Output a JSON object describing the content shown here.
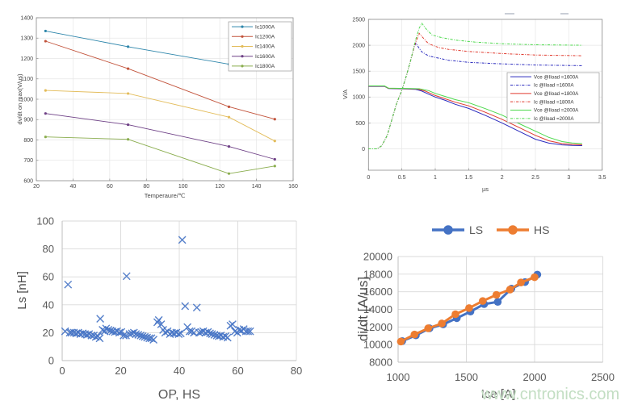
{
  "watermark": "www.cntronics.com",
  "chart_data": [
    {
      "id": "dvdt-vs-temperature",
      "type": "line",
      "style": "matlab",
      "xlabel": "Temperaure/℃",
      "ylabel": "dv/dt on max(V/us)",
      "xlim": [
        20,
        160
      ],
      "ylim": [
        600,
        1400
      ],
      "xticks": [
        20,
        40,
        60,
        80,
        100,
        120,
        140,
        160
      ],
      "yticks": [
        600,
        700,
        800,
        900,
        1000,
        1100,
        1200,
        1300,
        1400
      ],
      "grid": true,
      "legend_position": "top-right-inside",
      "x": [
        25,
        70,
        125,
        150
      ],
      "series": [
        {
          "name": "Ic1000A",
          "color": "#2E86AB",
          "marker": "dot",
          "values": [
            1335,
            1258,
            1172,
            1153
          ]
        },
        {
          "name": "Ic1200A",
          "color": "#C2533B",
          "marker": "dot",
          "values": [
            1285,
            1150,
            963,
            902
          ]
        },
        {
          "name": "Ic1400A",
          "color": "#E3BC5A",
          "marker": "dot",
          "values": [
            1043,
            1028,
            912,
            795
          ]
        },
        {
          "name": "Ic1600A",
          "color": "#6E4086",
          "marker": "dot",
          "values": [
            930,
            875,
            768,
            705
          ]
        },
        {
          "name": "Ic1800A",
          "color": "#8AAD4E",
          "marker": "dot",
          "values": [
            815,
            803,
            635,
            672
          ]
        }
      ]
    },
    {
      "id": "turn-on-waveforms",
      "type": "line",
      "style": "matlab",
      "xlabel": "µs",
      "ylabel": "V/A",
      "xlim": [
        0,
        3.5
      ],
      "ylim": [
        -200,
        2500
      ],
      "xticks": [
        0,
        0.5,
        1,
        1.5,
        2,
        2.5,
        3,
        3.5
      ],
      "yticks": [
        0,
        500,
        1000,
        1500,
        2000,
        2500
      ],
      "grid": true,
      "legend_position": "right-inside",
      "series": [
        {
          "name": "Vce @Iload =1600A",
          "color": "#2B2BBE",
          "dash": false,
          "points": [
            [
              0,
              1205
            ],
            [
              0.24,
              1205
            ],
            [
              0.3,
              1163
            ],
            [
              0.55,
              1156
            ],
            [
              0.7,
              1150
            ],
            [
              0.8,
              1115
            ],
            [
              0.9,
              1055
            ],
            [
              1.0,
              1000
            ],
            [
              1.15,
              935
            ],
            [
              1.3,
              860
            ],
            [
              1.5,
              780
            ],
            [
              1.75,
              645
            ],
            [
              2.0,
              500
            ],
            [
              2.25,
              340
            ],
            [
              2.5,
              185
            ],
            [
              2.7,
              110
            ],
            [
              2.9,
              75
            ],
            [
              3.05,
              65
            ],
            [
              3.2,
              62
            ]
          ]
        },
        {
          "name": "Ic @Iload =1600A",
          "color": "#2B2BBE",
          "dash": true,
          "points": [
            [
              0,
              0
            ],
            [
              0.13,
              0
            ],
            [
              0.2,
              60
            ],
            [
              0.28,
              260
            ],
            [
              0.35,
              560
            ],
            [
              0.42,
              870
            ],
            [
              0.5,
              1130
            ],
            [
              0.57,
              1420
            ],
            [
              0.63,
              1700
            ],
            [
              0.68,
              1950
            ],
            [
              0.71,
              2040
            ],
            [
              0.75,
              1960
            ],
            [
              0.8,
              1870
            ],
            [
              0.9,
              1795
            ],
            [
              1.0,
              1765
            ],
            [
              1.2,
              1710
            ],
            [
              1.5,
              1670
            ],
            [
              2.0,
              1640
            ],
            [
              2.5,
              1618
            ],
            [
              3.2,
              1605
            ]
          ]
        },
        {
          "name": "Vce @Iload =1800A",
          "color": "#E03A2E",
          "dash": false,
          "points": [
            [
              0,
              1210
            ],
            [
              0.24,
              1210
            ],
            [
              0.3,
              1168
            ],
            [
              0.55,
              1161
            ],
            [
              0.73,
              1155
            ],
            [
              0.85,
              1115
            ],
            [
              1.0,
              1030
            ],
            [
              1.15,
              965
            ],
            [
              1.3,
              900
            ],
            [
              1.5,
              830
            ],
            [
              1.75,
              705
            ],
            [
              2.0,
              570
            ],
            [
              2.25,
              415
            ],
            [
              2.5,
              260
            ],
            [
              2.7,
              155
            ],
            [
              2.9,
              100
            ],
            [
              3.05,
              85
            ],
            [
              3.2,
              78
            ]
          ]
        },
        {
          "name": "Ic @Iload =1800A",
          "color": "#E03A2E",
          "dash": true,
          "points": [
            [
              0,
              0
            ],
            [
              0.13,
              0
            ],
            [
              0.2,
              60
            ],
            [
              0.28,
              260
            ],
            [
              0.35,
              560
            ],
            [
              0.42,
              870
            ],
            [
              0.5,
              1130
            ],
            [
              0.57,
              1420
            ],
            [
              0.63,
              1700
            ],
            [
              0.69,
              2000
            ],
            [
              0.76,
              2230
            ],
            [
              0.82,
              2140
            ],
            [
              0.9,
              2030
            ],
            [
              1.05,
              1957
            ],
            [
              1.2,
              1920
            ],
            [
              1.5,
              1880
            ],
            [
              2.0,
              1840
            ],
            [
              2.5,
              1812
            ],
            [
              3.2,
              1798
            ]
          ]
        },
        {
          "name": "Vce @Iload =2000A",
          "color": "#4CD94C",
          "dash": false,
          "points": [
            [
              0,
              1215
            ],
            [
              0.24,
              1215
            ],
            [
              0.3,
              1173
            ],
            [
              0.55,
              1166
            ],
            [
              0.76,
              1160
            ],
            [
              0.9,
              1125
            ],
            [
              1.0,
              1070
            ],
            [
              1.15,
              1010
            ],
            [
              1.3,
              950
            ],
            [
              1.5,
              890
            ],
            [
              1.75,
              775
            ],
            [
              2.0,
              650
            ],
            [
              2.25,
              490
            ],
            [
              2.5,
              340
            ],
            [
              2.7,
              220
            ],
            [
              2.9,
              140
            ],
            [
              3.05,
              112
            ],
            [
              3.2,
              100
            ]
          ]
        },
        {
          "name": "Ic @Iload =2000A",
          "color": "#4CD94C",
          "dash": true,
          "points": [
            [
              0,
              0
            ],
            [
              0.13,
              0
            ],
            [
              0.2,
              60
            ],
            [
              0.28,
              260
            ],
            [
              0.35,
              560
            ],
            [
              0.42,
              870
            ],
            [
              0.5,
              1130
            ],
            [
              0.57,
              1420
            ],
            [
              0.63,
              1700
            ],
            [
              0.7,
              2080
            ],
            [
              0.76,
              2330
            ],
            [
              0.8,
              2424
            ],
            [
              0.86,
              2320
            ],
            [
              0.95,
              2200
            ],
            [
              1.09,
              2150
            ],
            [
              1.3,
              2100
            ],
            [
              1.6,
              2060
            ],
            [
              2.0,
              2030
            ],
            [
              2.5,
              2010
            ],
            [
              3.2,
              2000
            ]
          ]
        }
      ]
    },
    {
      "id": "ls-stray-inductance",
      "type": "scatter",
      "style": "excel",
      "xlabel": "OP, HS",
      "ylabel": "Ls [nH]",
      "xlim": [
        0,
        80
      ],
      "ylim": [
        0,
        100
      ],
      "xticks": [
        0,
        20,
        40,
        60,
        80
      ],
      "yticks": [
        0,
        20,
        40,
        60,
        80,
        100
      ],
      "grid": true,
      "marker": "x",
      "color": "#4472C4",
      "points": [
        [
          1,
          21
        ],
        [
          2,
          54.5
        ],
        [
          2.6,
          20
        ],
        [
          3.2,
          20
        ],
        [
          4,
          20
        ],
        [
          4.8,
          19.5
        ],
        [
          5.5,
          20
        ],
        [
          6.2,
          19
        ],
        [
          7,
          19.5
        ],
        [
          7.8,
          19
        ],
        [
          8.5,
          18.5
        ],
        [
          9.2,
          19
        ],
        [
          10,
          18
        ],
        [
          10.8,
          18
        ],
        [
          11.5,
          17
        ],
        [
          12.2,
          17.5
        ],
        [
          12.8,
          16
        ],
        [
          13,
          30
        ],
        [
          13.8,
          22
        ],
        [
          14.5,
          21
        ],
        [
          15,
          23
        ],
        [
          15.8,
          22
        ],
        [
          16.5,
          21.5
        ],
        [
          17.2,
          21
        ],
        [
          18,
          20.5
        ],
        [
          18.7,
          21
        ],
        [
          19.5,
          20
        ],
        [
          20.2,
          20.5
        ],
        [
          21,
          18
        ],
        [
          21.8,
          18
        ],
        [
          22,
          60.5
        ],
        [
          23,
          19
        ],
        [
          23.8,
          19.5
        ],
        [
          24.5,
          20
        ],
        [
          25.2,
          19
        ],
        [
          26,
          18.5
        ],
        [
          26.8,
          18
        ],
        [
          27.5,
          17.5
        ],
        [
          28.2,
          17
        ],
        [
          29,
          16.5
        ],
        [
          29.8,
          16
        ],
        [
          30.5,
          16
        ],
        [
          31.2,
          15
        ],
        [
          32.5,
          27.5
        ],
        [
          33,
          29
        ],
        [
          33.8,
          26
        ],
        [
          34.5,
          22
        ],
        [
          35.2,
          20
        ],
        [
          36,
          21
        ],
        [
          36.8,
          19
        ],
        [
          37.5,
          20
        ],
        [
          38.2,
          19.5
        ],
        [
          39,
          20
        ],
        [
          39.8,
          19
        ],
        [
          40.5,
          19.5
        ],
        [
          41,
          86.5
        ],
        [
          42,
          39
        ],
        [
          42.8,
          24
        ],
        [
          43.5,
          21
        ],
        [
          44.2,
          21
        ],
        [
          45,
          20
        ],
        [
          46,
          38
        ],
        [
          46.8,
          20
        ],
        [
          47.5,
          20.5
        ],
        [
          48.2,
          21
        ],
        [
          49,
          20
        ],
        [
          49.8,
          20.5
        ],
        [
          50.5,
          19.5
        ],
        [
          51.2,
          19
        ],
        [
          52,
          18.5
        ],
        [
          52.8,
          18
        ],
        [
          53.5,
          17.5
        ],
        [
          54.2,
          18
        ],
        [
          55,
          17
        ],
        [
          55.8,
          17.5
        ],
        [
          56.5,
          16.5
        ],
        [
          57.5,
          25
        ],
        [
          58.2,
          26
        ],
        [
          59,
          21
        ],
        [
          59.8,
          20
        ],
        [
          60.5,
          22
        ],
        [
          61.2,
          21.5
        ],
        [
          62,
          22.5
        ],
        [
          62.8,
          21
        ],
        [
          63.5,
          21
        ],
        [
          64.2,
          21
        ]
      ]
    },
    {
      "id": "didt-vs-ice",
      "type": "line",
      "style": "excel",
      "xlabel": "Ice [A]",
      "ylabel": "di/dt [A/us]",
      "xlim": [
        1000,
        2500
      ],
      "ylim": [
        8000,
        20000
      ],
      "xticks": [
        1000,
        1500,
        2000,
        2500
      ],
      "yticks": [
        8000,
        10000,
        12000,
        14000,
        16000,
        18000,
        20000
      ],
      "grid": true,
      "legend_position": "top",
      "series": [
        {
          "name": "LS",
          "color": "#4472C4",
          "marker": "circle",
          "points": [
            [
              1030,
              10400
            ],
            [
              1130,
              11050
            ],
            [
              1230,
              11850
            ],
            [
              1330,
              12300
            ],
            [
              1430,
              13000
            ],
            [
              1530,
              13750
            ],
            [
              1630,
              14600
            ],
            [
              1730,
              14850
            ],
            [
              1830,
              16350
            ],
            [
              1930,
              17100
            ],
            [
              2020,
              17950
            ]
          ]
        },
        {
          "name": "HS",
          "color": "#ED7D31",
          "marker": "circle",
          "points": [
            [
              1020,
              10350
            ],
            [
              1120,
              11150
            ],
            [
              1220,
              11850
            ],
            [
              1320,
              12400
            ],
            [
              1420,
              13450
            ],
            [
              1520,
              14150
            ],
            [
              1620,
              14950
            ],
            [
              1720,
              15650
            ],
            [
              1820,
              16250
            ],
            [
              1900,
              17050
            ],
            [
              2000,
              17650
            ]
          ]
        }
      ]
    }
  ]
}
